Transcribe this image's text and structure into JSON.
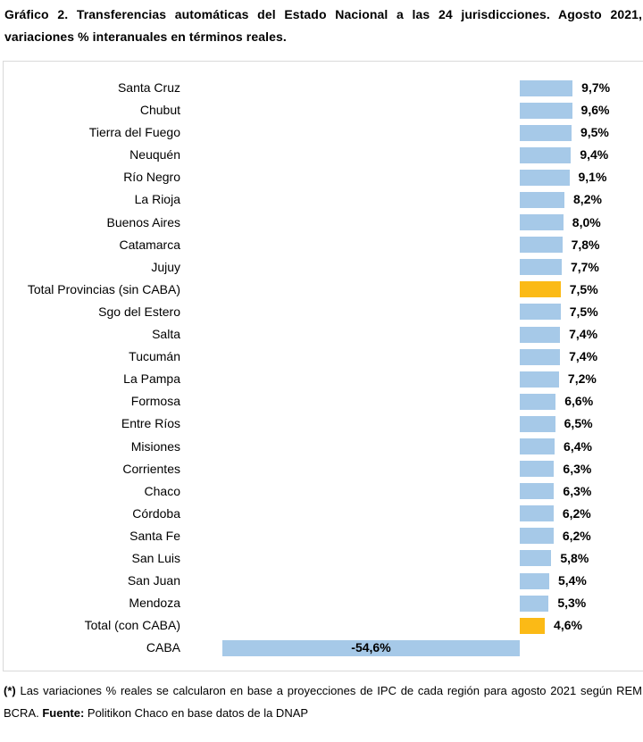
{
  "title": {
    "line1": "Gráfico 2. Transferencias automáticas del Estado Nacional a las 24 jurisdicciones. Agosto 2021,",
    "line2": "variaciones % interanuales en términos reales."
  },
  "chart_data": {
    "type": "bar",
    "orientation": "horizontal",
    "title": "Transferencias automáticas del Estado Nacional a las 24 jurisdicciones. Agosto 2021, variaciones % interanuales en términos reales",
    "categories": [
      "Santa Cruz",
      "Chubut",
      "Tierra del Fuego",
      "Neuquén",
      "Río Negro",
      "La Rioja",
      "Buenos Aires",
      "Catamarca",
      "Jujuy",
      "Total Provincias (sin CABA)",
      "Sgo del Estero",
      "Salta",
      "Tucumán",
      "La Pampa",
      "Formosa",
      "Entre Ríos",
      "Misiones",
      "Corrientes",
      "Chaco",
      "Córdoba",
      "Santa Fe",
      "San Luis",
      "San Juan",
      "Mendoza",
      "Total (con CABA)",
      "CABA"
    ],
    "values": [
      9.7,
      9.6,
      9.5,
      9.4,
      9.1,
      8.2,
      8.0,
      7.8,
      7.7,
      7.5,
      7.5,
      7.4,
      7.4,
      7.2,
      6.6,
      6.5,
      6.4,
      6.3,
      6.3,
      6.2,
      6.2,
      5.8,
      5.4,
      5.3,
      4.6,
      -54.6
    ],
    "value_labels": [
      "9,7%",
      "9,6%",
      "9,5%",
      "9,4%",
      "9,1%",
      "8,2%",
      "8,0%",
      "7,8%",
      "7,7%",
      "7,5%",
      "7,5%",
      "7,4%",
      "7,4%",
      "7,2%",
      "6,6%",
      "6,5%",
      "6,4%",
      "6,3%",
      "6,3%",
      "6,2%",
      "6,2%",
      "5,8%",
      "5,4%",
      "5,3%",
      "4,6%",
      "-54,6%"
    ],
    "highlight_indexes": [
      9,
      24
    ],
    "bar_color": "#A6C9E8",
    "highlight_color": "#FBBA16",
    "xlim": [
      -55,
      10
    ],
    "grid": false,
    "legend": false,
    "value_label_position": "outside_end_positive_inside_center_negative"
  },
  "footnote": {
    "marker": "(*)",
    "line1_rest": " Las variaciones % reales se calcularon en base a proyecciones de IPC de cada región para agosto 2021 según REM",
    "line2_pre": "BCRA. ",
    "fuente_label": "Fuente:",
    "line2_rest": " Politikon Chaco en base datos de la DNAP"
  }
}
